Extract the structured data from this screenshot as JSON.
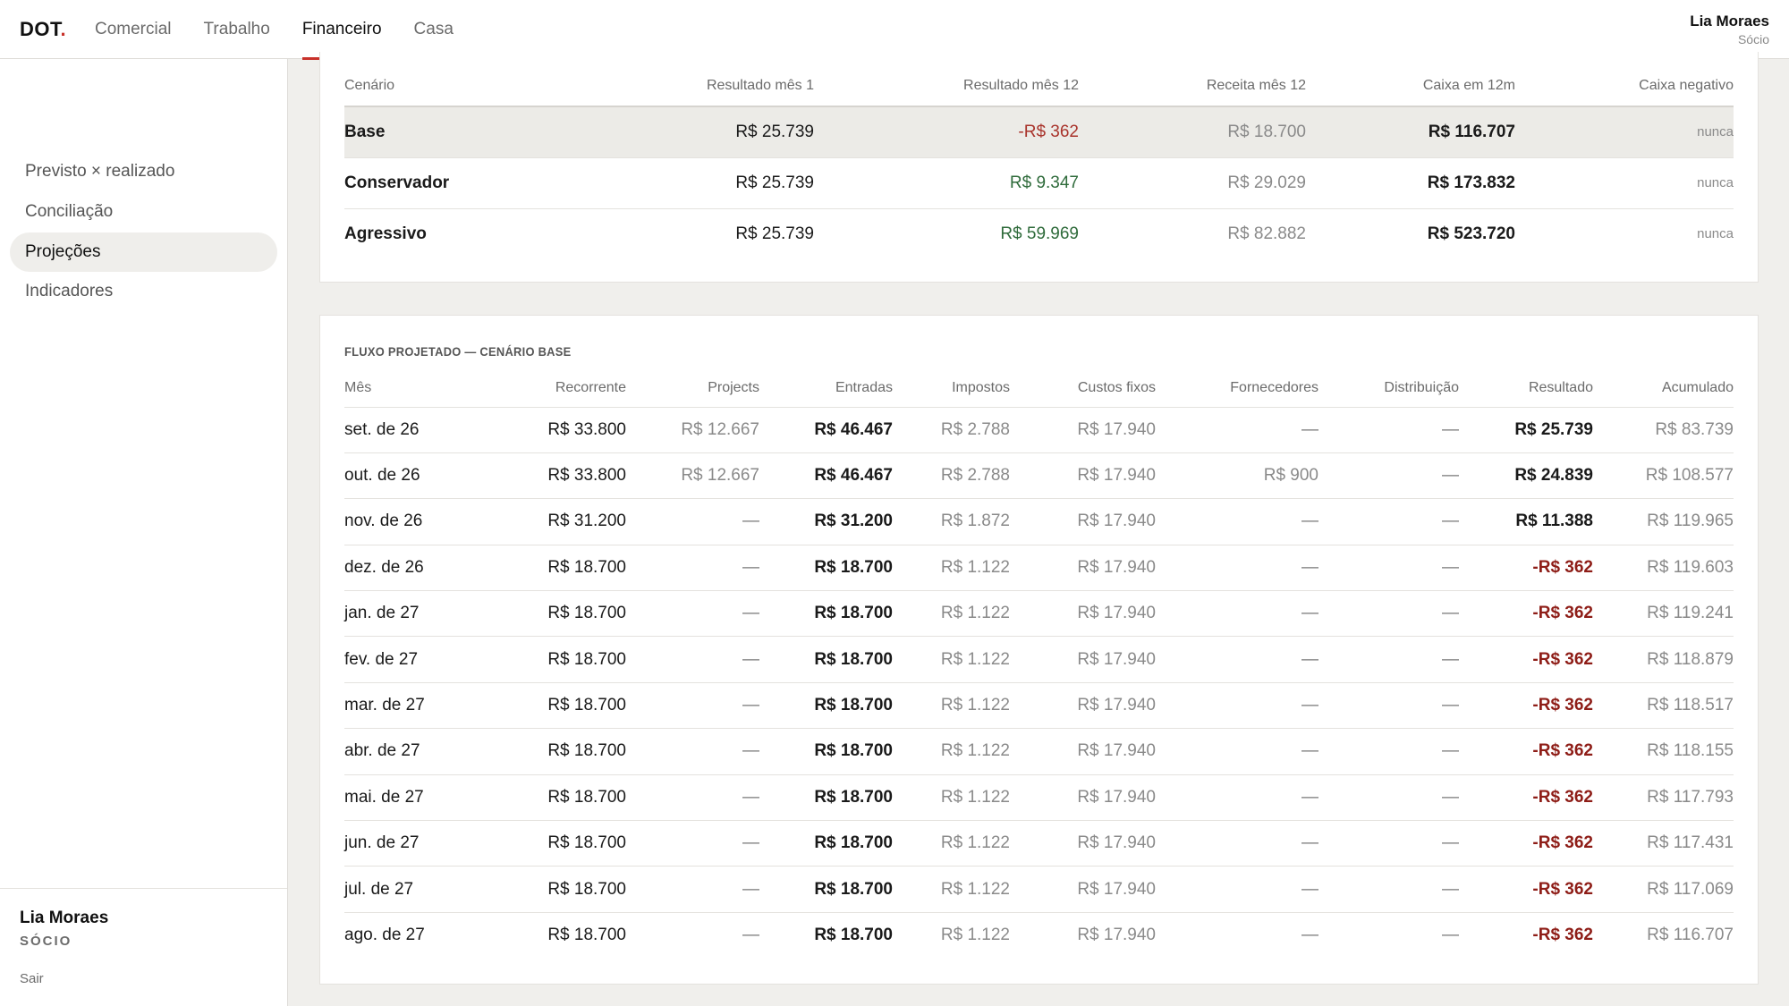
{
  "app": {
    "logo_text": "DOT",
    "logo_dot": "."
  },
  "nav": {
    "items": [
      {
        "label": "Comercial",
        "active": false
      },
      {
        "label": "Trabalho",
        "active": false
      },
      {
        "label": "Financeiro",
        "active": true
      },
      {
        "label": "Casa",
        "active": false
      }
    ]
  },
  "user": {
    "name": "Lia Moraes",
    "role": "Sócio"
  },
  "sidebar": {
    "items": [
      {
        "label": "Previsto × realizado",
        "active": false
      },
      {
        "label": "Conciliação",
        "active": false
      },
      {
        "label": "Projeções",
        "active": true
      },
      {
        "label": "Indicadores",
        "active": false
      }
    ],
    "footer": {
      "name": "Lia Moraes",
      "role": "SÓCIO",
      "logout": "Sair"
    }
  },
  "scenarios": {
    "headers": [
      "Cenário",
      "Resultado mês 1",
      "Resultado mês 12",
      "Receita mês 12",
      "Caixa em 12m",
      "Caixa negativo"
    ],
    "rows": [
      {
        "name": "Base",
        "m1": "R$ 25.739",
        "m12": "-R$ 362",
        "m12_tone": "neg",
        "receita": "R$ 18.700",
        "caixa": "R$ 116.707",
        "negativo": "nunca",
        "selected": true
      },
      {
        "name": "Conservador",
        "m1": "R$ 25.739",
        "m12": "R$ 9.347",
        "m12_tone": "pos",
        "receita": "R$ 29.029",
        "caixa": "R$ 173.832",
        "negativo": "nunca",
        "selected": false
      },
      {
        "name": "Agressivo",
        "m1": "R$ 25.739",
        "m12": "R$ 59.969",
        "m12_tone": "pos",
        "receita": "R$ 82.882",
        "caixa": "R$ 523.720",
        "negativo": "nunca",
        "selected": false
      }
    ]
  },
  "flow": {
    "title": "FLUXO PROJETADO — CENÁRIO BASE",
    "headers": [
      "Mês",
      "Recorrente",
      "Projects",
      "Entradas",
      "Impostos",
      "Custos fixos",
      "Fornecedores",
      "Distribuição",
      "Resultado",
      "Acumulado"
    ],
    "rows": [
      [
        "set. de 26",
        "R$ 33.800",
        "R$ 12.667",
        "R$ 46.467",
        "R$ 2.788",
        "R$ 17.940",
        "—",
        "—",
        "R$ 25.739",
        "R$ 83.739"
      ],
      [
        "out. de 26",
        "R$ 33.800",
        "R$ 12.667",
        "R$ 46.467",
        "R$ 2.788",
        "R$ 17.940",
        "R$ 900",
        "—",
        "R$ 24.839",
        "R$ 108.577"
      ],
      [
        "nov. de 26",
        "R$ 31.200",
        "—",
        "R$ 31.200",
        "R$ 1.872",
        "R$ 17.940",
        "—",
        "—",
        "R$ 11.388",
        "R$ 119.965"
      ],
      [
        "dez. de 26",
        "R$ 18.700",
        "—",
        "R$ 18.700",
        "R$ 1.122",
        "R$ 17.940",
        "—",
        "—",
        "-R$ 362",
        "R$ 119.603"
      ],
      [
        "jan. de 27",
        "R$ 18.700",
        "—",
        "R$ 18.700",
        "R$ 1.122",
        "R$ 17.940",
        "—",
        "—",
        "-R$ 362",
        "R$ 119.241"
      ],
      [
        "fev. de 27",
        "R$ 18.700",
        "—",
        "R$ 18.700",
        "R$ 1.122",
        "R$ 17.940",
        "—",
        "—",
        "-R$ 362",
        "R$ 118.879"
      ],
      [
        "mar. de 27",
        "R$ 18.700",
        "—",
        "R$ 18.700",
        "R$ 1.122",
        "R$ 17.940",
        "—",
        "—",
        "-R$ 362",
        "R$ 118.517"
      ],
      [
        "abr. de 27",
        "R$ 18.700",
        "—",
        "R$ 18.700",
        "R$ 1.122",
        "R$ 17.940",
        "—",
        "—",
        "-R$ 362",
        "R$ 118.155"
      ],
      [
        "mai. de 27",
        "R$ 18.700",
        "—",
        "R$ 18.700",
        "R$ 1.122",
        "R$ 17.940",
        "—",
        "—",
        "-R$ 362",
        "R$ 117.793"
      ],
      [
        "jun. de 27",
        "R$ 18.700",
        "—",
        "R$ 18.700",
        "R$ 1.122",
        "R$ 17.940",
        "—",
        "—",
        "-R$ 362",
        "R$ 117.431"
      ],
      [
        "jul. de 27",
        "R$ 18.700",
        "—",
        "R$ 18.700",
        "R$ 1.122",
        "R$ 17.940",
        "—",
        "—",
        "-R$ 362",
        "R$ 117.069"
      ],
      [
        "ago. de 27",
        "R$ 18.700",
        "—",
        "R$ 18.700",
        "R$ 1.122",
        "R$ 17.940",
        "—",
        "—",
        "-R$ 362",
        "R$ 116.707"
      ]
    ]
  }
}
